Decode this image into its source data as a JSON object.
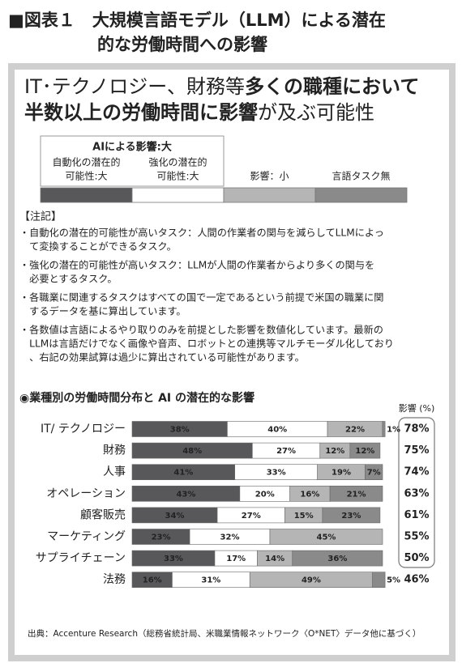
{
  "header": {
    "title_lines": [
      "■図表１　大規模言語モデル（LLM）による潜在",
      "的な労働時間への影響"
    ]
  },
  "headline": [
    [
      {
        "text": "IT･テクノロジー、財務等",
        "bold": false
      },
      {
        "text": "多くの職種において",
        "bold": true
      }
    ],
    [
      {
        "text": "半数以上の労働時間に影響",
        "bold": true
      },
      {
        "text": "が及ぶ可能性",
        "bold": false
      }
    ]
  ],
  "legend": {
    "group": "AIによる影響:大",
    "items": [
      {
        "lines": [
          "自動化の潜在的",
          "可能性:大"
        ]
      },
      {
        "lines": [
          "強化の潜在的",
          "可能性:大"
        ]
      },
      {
        "lines": [
          "影響：小"
        ]
      },
      {
        "lines": [
          "言語タスク無"
        ]
      }
    ]
  },
  "notes": {
    "title": "【注記】",
    "items": [
      [
        "・自動化の潜在的可能性が高いタスク：人間の作業者の関与を減らしてLLMによっ",
        "　て変換することができるタスク。"
      ],
      [
        "・強化の潜在的可能性が高いタスク：LLMが人間の作業者からより多くの関与を",
        "　必要とするタスク。"
      ],
      [
        "・各職業に関連するタスクはすべての国で一定であるという前提で米国の職業に関",
        "　するデータを基に算出しています。"
      ],
      [
        "・各数値は言語によるやり取りのみを前提とした影響を数値化しています。最新の",
        "　LLMは言語だけでなく画像や音声、ロボットとの連携等マルチモーダル化しており",
        "　、右記の効果試算は過少に算出されている可能性があります。"
      ]
    ]
  },
  "chart_data": {
    "type": "stacked_hbar",
    "title": "◉業種別の労働時間分布と AI の潜在的な影響",
    "categories": [
      "IT/ テクノロジー",
      "財務",
      "人事",
      "オペレーション",
      "顧客販売",
      "マーケティング",
      "サプライチェーン",
      "法務"
    ],
    "series": [
      {
        "color": "#58585a",
        "values": [
          38,
          48,
          41,
          43,
          34,
          23,
          33,
          16
        ],
        "value_labels": [
          "38%",
          "48%",
          "41%",
          "43%",
          "34%",
          "23%",
          "33%",
          "16%"
        ]
      },
      {
        "color": "#ffffff",
        "values": [
          40,
          27,
          33,
          20,
          27,
          32,
          17,
          31
        ],
        "value_labels": [
          "40%",
          "27%",
          "33%",
          "20%",
          "27%",
          "32%",
          "17%",
          "31%"
        ]
      },
      {
        "color": "#b5b5b5",
        "values": [
          22,
          12,
          19,
          16,
          15,
          45,
          14,
          49
        ],
        "value_labels": [
          "22%",
          "12%",
          "19%",
          "16%",
          "15%",
          "45%",
          "14%",
          "49%"
        ]
      },
      {
        "color": "#8a8a8a",
        "values": [
          1,
          12,
          7,
          21,
          23,
          0,
          36,
          5
        ],
        "value_labels": [
          "1%",
          "12%",
          "7%",
          "21%",
          "23%",
          null,
          "36%",
          "5%"
        ]
      }
    ],
    "xlim": [
      0,
      100
    ],
    "impact": {
      "title": "影響 (%)",
      "values": [
        78,
        75,
        74,
        63,
        61,
        55,
        50,
        46
      ],
      "value_labels": [
        "78%",
        "75%",
        "74%",
        "63%",
        "61%",
        "55%",
        "50%",
        "46%"
      ]
    }
  },
  "source": "出典：Accenture Research（総務省統計局、米職業情報ネットワーク〈O*NET〉データ他に基づく）"
}
